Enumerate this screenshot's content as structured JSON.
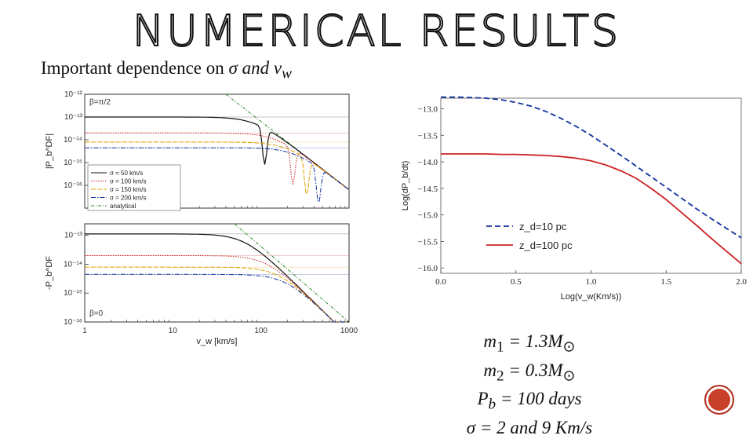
{
  "slide": {
    "title": "NUMERICAL RESULTS",
    "subtitle_prefix": "Important dependence on ",
    "subtitle_math": "σ and v",
    "subtitle_sub": "w"
  },
  "equations": [
    {
      "lhs": "m",
      "sub": "1",
      "rhs": " = 1.3M",
      "sun": "⊙"
    },
    {
      "lhs": "m",
      "sub": "2",
      "rhs": " = 0.3M",
      "sun": "⊙"
    },
    {
      "lhs": "P",
      "sub": "b",
      "rhs": " = 100 days",
      "sun": ""
    },
    {
      "lhs": "σ",
      "sub": "",
      "rhs": " = 2 and 9 Km/s",
      "sun": ""
    }
  ],
  "chart_data": [
    {
      "type": "line",
      "xscale": "log",
      "yscale": "log",
      "xlim": [
        1,
        1000
      ],
      "xlabel": "v_w [km/s]",
      "x_ticks": [
        "1",
        "10",
        "100",
        "1000"
      ],
      "panels": [
        {
          "name": "top",
          "annotation": "β=π/2",
          "ylabel": "|P_b^DF|",
          "ylim_exp": [
            -17,
            -12
          ],
          "y_ticks": [
            "10⁻¹²",
            "10⁻¹³",
            "10⁻¹⁴",
            "10⁻¹⁵",
            "10⁻¹⁶"
          ],
          "plateaus_exp": [
            -13.0,
            -13.7,
            -14.1,
            -14.35
          ],
          "dip_positions": [
            110,
            230,
            330,
            450
          ]
        },
        {
          "name": "bottom",
          "annotation": "β=0",
          "ylabel": "-P_b^DF",
          "ylim_exp": [
            -16,
            -12.6
          ],
          "y_ticks": [
            "10⁻¹³",
            "10⁻¹⁴",
            "10⁻¹⁵",
            "10⁻¹⁶"
          ],
          "plateaus_exp": [
            -12.95,
            -13.7,
            -14.1,
            -14.35
          ]
        }
      ],
      "legend": [
        {
          "label": "σ = 50 km/s",
          "color": "#111111",
          "dash": ""
        },
        {
          "label": "σ = 100 km/s",
          "color": "#cc2222",
          "dash": "1.5,1.5"
        },
        {
          "label": "σ = 150 km/s",
          "color": "#e0a000",
          "dash": "6,2"
        },
        {
          "label": "σ = 200 km/s",
          "color": "#1030a0",
          "dash": "6,2,1.5,2"
        },
        {
          "label": "analytical",
          "color": "#2a8a2a",
          "dash": "4,2,1,2"
        }
      ],
      "sigmas": [
        50,
        100,
        150,
        200
      ]
    },
    {
      "type": "line",
      "xlabel": "Log(v_w(Km/s))",
      "ylabel": "Log(dP_b/dt)",
      "xlim": [
        0.0,
        2.0
      ],
      "ylim": [
        -16.1,
        -12.8
      ],
      "x_ticks": [
        "0.0",
        "0.5",
        "1.0",
        "1.5",
        "2.0"
      ],
      "y_ticks": [
        "−13.0",
        "−13.5",
        "−14.0",
        "−14.5",
        "−15.0",
        "−15.5",
        "−16.0"
      ],
      "series": [
        {
          "name": "z_d=10 pc",
          "color": "#1030a0",
          "dash": "7,4",
          "x": [
            0.0,
            0.1,
            0.2,
            0.3,
            0.4,
            0.5,
            0.6,
            0.7,
            0.8,
            0.9,
            1.0,
            1.1,
            1.2,
            1.3,
            1.4,
            1.5,
            1.6,
            1.7,
            1.8,
            1.9,
            2.0
          ],
          "y": [
            -12.78,
            -12.78,
            -12.79,
            -12.8,
            -12.83,
            -12.88,
            -12.95,
            -13.05,
            -13.18,
            -13.33,
            -13.5,
            -13.69,
            -13.88,
            -14.08,
            -14.28,
            -14.48,
            -14.68,
            -14.88,
            -15.07,
            -15.25,
            -15.43
          ]
        },
        {
          "name": "z_d=100 pc",
          "color": "#cc2222",
          "dash": "",
          "x": [
            0.0,
            0.1,
            0.2,
            0.3,
            0.4,
            0.5,
            0.6,
            0.7,
            0.8,
            0.9,
            1.0,
            1.1,
            1.2,
            1.3,
            1.4,
            1.5,
            1.6,
            1.7,
            1.8,
            1.9,
            2.0
          ],
          "y": [
            -13.85,
            -13.85,
            -13.85,
            -13.85,
            -13.86,
            -13.86,
            -13.87,
            -13.88,
            -13.9,
            -13.93,
            -13.98,
            -14.06,
            -14.17,
            -14.31,
            -14.5,
            -14.71,
            -14.95,
            -15.19,
            -15.44,
            -15.68,
            -15.92
          ]
        }
      ],
      "legend_position": "center-left"
    }
  ]
}
